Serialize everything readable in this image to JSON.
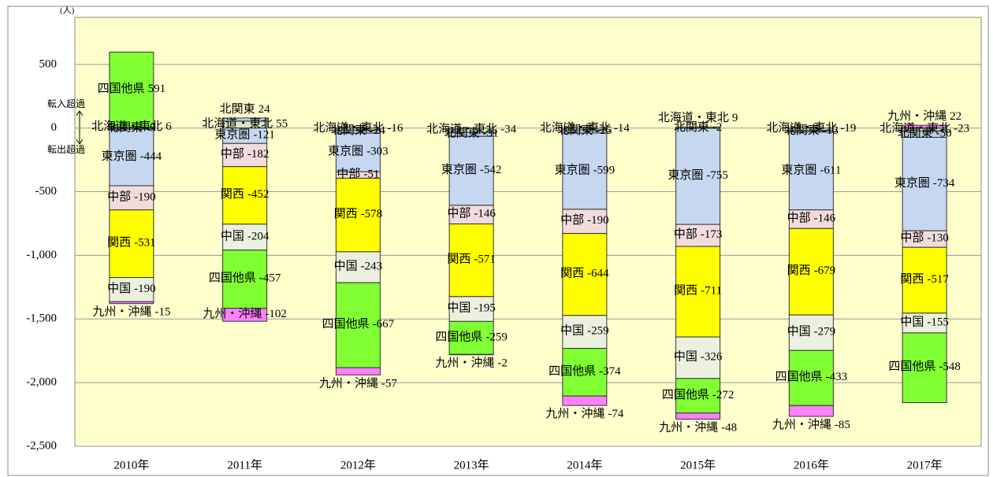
{
  "chart_data": {
    "type": "bar",
    "stacked": true,
    "unit": "(人)",
    "annotations": [
      "転入超過",
      "転出超過"
    ],
    "categories": [
      "2010年",
      "2011年",
      "2012年",
      "2013年",
      "2014年",
      "2015年",
      "2016年",
      "2017年"
    ],
    "series": [
      {
        "name": "北海道・東北",
        "color": "#d7e4bd",
        "values": [
          6,
          55,
          -16,
          -34,
          -14,
          9,
          -19,
          -23
        ]
      },
      {
        "name": "北関東",
        "color": "#b9cde5",
        "values": [
          -9,
          24,
          -24,
          -31,
          -25,
          -2,
          -13,
          -50
        ]
      },
      {
        "name": "東京圏",
        "color": "#c6d7f0",
        "values": [
          -444,
          -121,
          -303,
          -542,
          -599,
          -755,
          -611,
          -734
        ]
      },
      {
        "name": "中部",
        "color": "#f2dcdb",
        "values": [
          -190,
          -182,
          -51,
          -146,
          -190,
          -173,
          -146,
          -130
        ]
      },
      {
        "name": "関西",
        "color": "#ffff00",
        "values": [
          -531,
          -452,
          -578,
          -571,
          -644,
          -711,
          -679,
          -517
        ]
      },
      {
        "name": "中国",
        "color": "#ebf1de",
        "values": [
          -190,
          -204,
          -243,
          -195,
          -259,
          -326,
          -279,
          -155
        ]
      },
      {
        "name": "四国他県",
        "color": "#80ff33",
        "values": [
          591,
          -457,
          -667,
          -259,
          -374,
          -272,
          -433,
          -548
        ]
      },
      {
        "name": "九州・沖縄",
        "color": "#ff80ff",
        "values": [
          -15,
          -102,
          -57,
          -2,
          -74,
          -48,
          -85,
          22
        ]
      }
    ],
    "ylim": [
      -2500,
      870
    ],
    "yticks": [
      {
        "value": -2500,
        "label": "-2,500"
      },
      {
        "value": -2000,
        "label": "-2,000"
      },
      {
        "value": -1500,
        "label": "-1,500"
      },
      {
        "value": -1000,
        "label": "-1,000"
      },
      -500,
      0,
      500
    ],
    "grid": true
  }
}
